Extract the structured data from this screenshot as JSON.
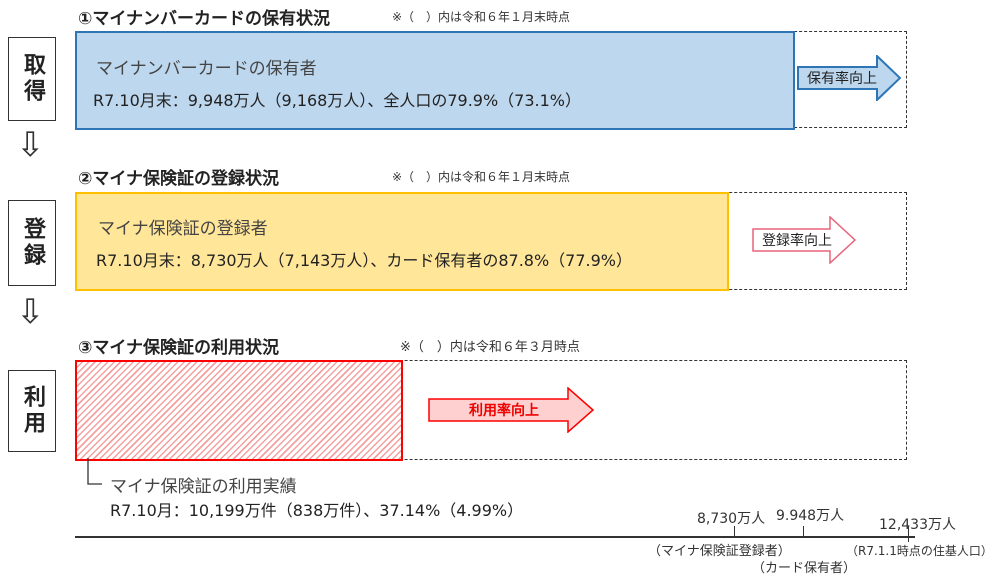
{
  "side_labels": [
    {
      "text": "取得"
    },
    {
      "text": "登録"
    },
    {
      "text": "利用"
    }
  ],
  "sections": [
    {
      "title": "①マイナンバーカードの保有状況",
      "note": "※（　）内は令和６年１月末時点",
      "line1": "マイナンバーカードの保有者",
      "line2": "R7.10月末：9,948万人（9,168万人）、全人口の79.9%（73.1%）",
      "arrow": "保有率向上",
      "color": "#bdd7ee",
      "border": "#2e75b6"
    },
    {
      "title": "②マイナ保険証の登録状況",
      "note": "※（　）内は令和６年１月末時点",
      "line1": "マイナ保険証の登録者",
      "line2": "R7.10月末：8,730万人（7,143万人）、カード保有者の87.8%（77.9%）",
      "arrow": "登録率向上",
      "color": "#ffe699",
      "border": "#ffc000"
    },
    {
      "title": "③マイナ保険証の利用状況",
      "note": "※（　）内は令和６年３月時点",
      "line1": "マイナ保険証の利用実績",
      "line2": "R7.10月：10,199万件（838万件）、37.14%（4.99%）",
      "arrow": "利用率向上",
      "color": "#ff0000",
      "border": "#ff0000"
    }
  ],
  "scale": {
    "ticks": [
      {
        "value": "8,730万人",
        "label": "（マイナ保険証登録者）"
      },
      {
        "value": "9.948万人",
        "label": "（カード保有者）"
      },
      {
        "value": "12,433万人",
        "label": "（R7.1.1時点の住基人口）"
      }
    ]
  }
}
